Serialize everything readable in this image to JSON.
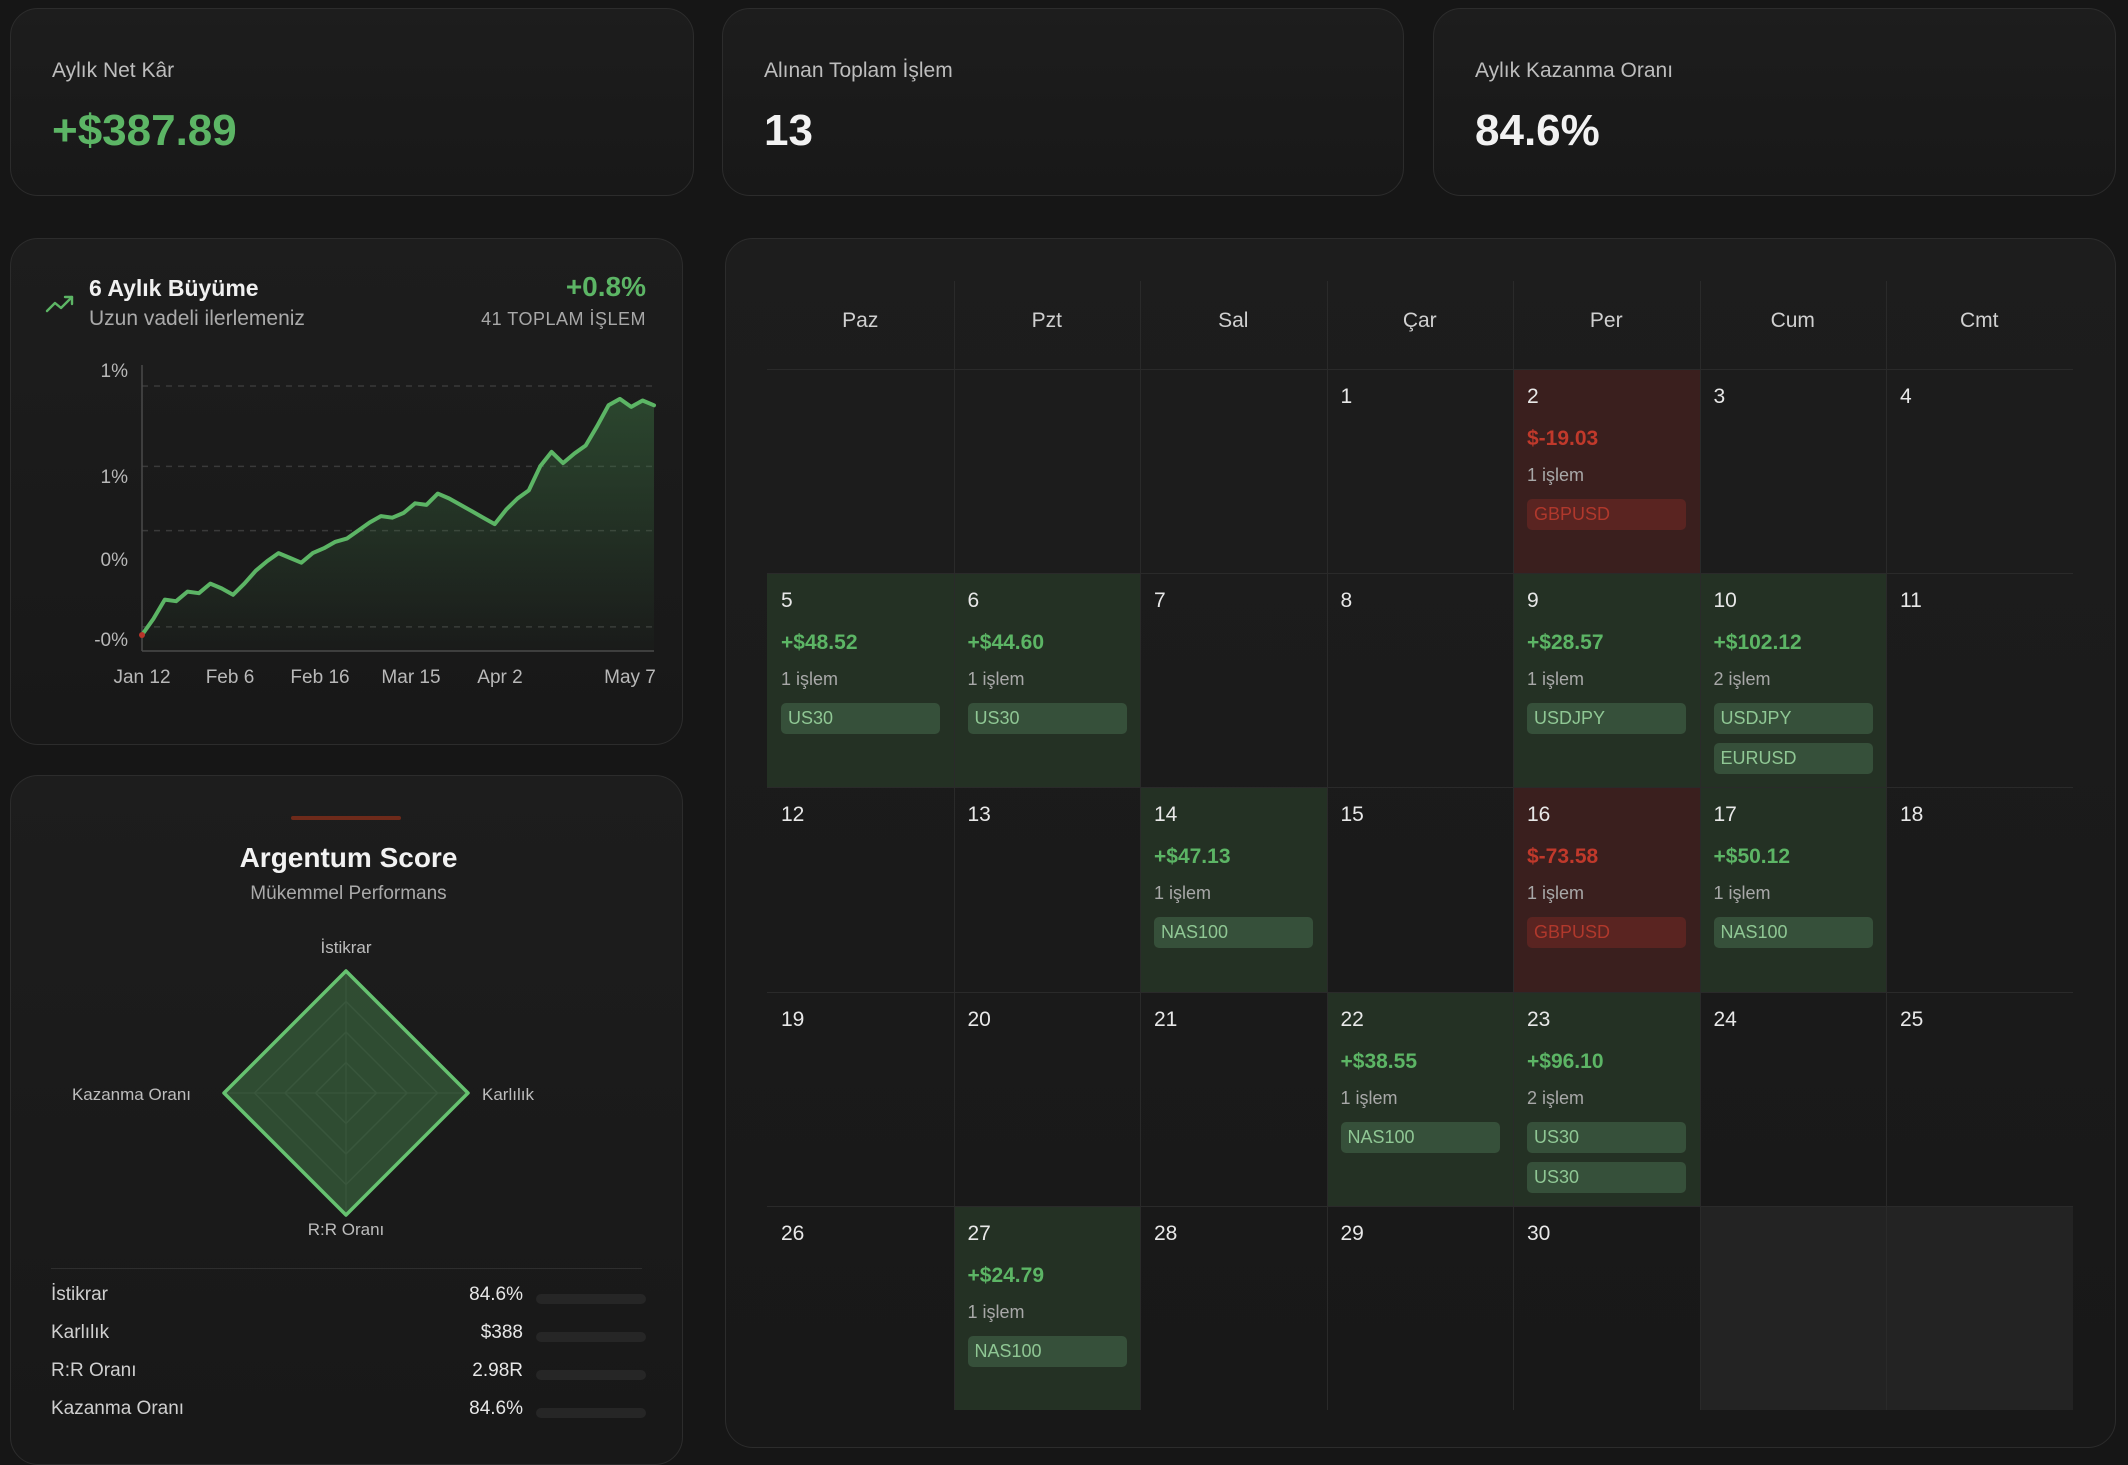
{
  "stats": [
    {
      "label": "Aylık Net Kâr",
      "value": "+$387.89",
      "positive": true
    },
    {
      "label": "Alınan Toplam İşlem",
      "value": "13",
      "positive": false
    },
    {
      "label": "Aylık Kazanma Oranı",
      "value": "84.6%",
      "positive": false
    }
  ],
  "growth": {
    "title": "6 Aylık Büyüme",
    "subtitle": "Uzun vadeli ilerlemeniz",
    "percent": "+0.8%",
    "count_label": "41 TOPLAM İŞLEM",
    "icon": "trending-up-icon",
    "y_ticks": [
      "1%",
      "1%",
      "0%",
      "-0%"
    ],
    "x_ticks": [
      "Jan 12",
      "Feb 6",
      "Feb 16",
      "Mar 15",
      "Apr 2",
      "May 7"
    ],
    "line_color": "#5cb565"
  },
  "chart_data": {
    "type": "area",
    "title": "6 Aylık Büyüme",
    "x_tick_labels": [
      "Jan 12",
      "Feb 6",
      "Feb 16",
      "Mar 15",
      "Apr 2",
      "May 7"
    ],
    "y_tick_labels": [
      "1%",
      "1%",
      "0%",
      "-0%"
    ],
    "ylim": [
      -0.2,
      1.55
    ],
    "grid": true,
    "values": [
      -0.1,
      0.0,
      0.12,
      0.11,
      0.17,
      0.16,
      0.22,
      0.19,
      0.15,
      0.22,
      0.3,
      0.36,
      0.41,
      0.38,
      0.35,
      0.41,
      0.44,
      0.48,
      0.5,
      0.55,
      0.6,
      0.64,
      0.63,
      0.66,
      0.72,
      0.71,
      0.78,
      0.75,
      0.71,
      0.67,
      0.63,
      0.59,
      0.68,
      0.75,
      0.8,
      0.95,
      1.04,
      0.97,
      1.03,
      1.08,
      1.2,
      1.33,
      1.37,
      1.32,
      1.36,
      1.33
    ]
  },
  "score": {
    "title": "Argentum Score",
    "subtitle": "Mükemmel Performans",
    "axes": [
      {
        "label": "İstikrar",
        "value": 0.846
      },
      {
        "label": "Karlılık",
        "value": 0.85
      },
      {
        "label": "R:R Oranı",
        "value": 0.85
      },
      {
        "label": "Kazanma Oranı",
        "value": 0.846
      }
    ],
    "metrics": [
      {
        "label": "İstikrar",
        "value": "84.6%"
      },
      {
        "label": "Karlılık",
        "value": "$388"
      },
      {
        "label": "R:R Oranı",
        "value": "2.98R"
      },
      {
        "label": "Kazanma Oranı",
        "value": "84.6%"
      }
    ]
  },
  "calendar": {
    "days": [
      "Paz",
      "Pzt",
      "Sal",
      "Çar",
      "Per",
      "Cum",
      "Cmt"
    ],
    "weeks": [
      [
        null,
        null,
        null,
        {
          "day": "1"
        },
        {
          "day": "2",
          "pnl": "$-19.03",
          "trades": "1 işlem",
          "tags": [
            "GBPUSD"
          ],
          "type": "loss"
        },
        {
          "day": "3"
        },
        {
          "day": "4"
        }
      ],
      [
        {
          "day": "5",
          "pnl": "+$48.52",
          "trades": "1 işlem",
          "tags": [
            "US30"
          ],
          "type": "profit"
        },
        {
          "day": "6",
          "pnl": "+$44.60",
          "trades": "1 işlem",
          "tags": [
            "US30"
          ],
          "type": "profit"
        },
        {
          "day": "7"
        },
        {
          "day": "8"
        },
        {
          "day": "9",
          "pnl": "+$28.57",
          "trades": "1 işlem",
          "tags": [
            "USDJPY"
          ],
          "type": "profit"
        },
        {
          "day": "10",
          "pnl": "+$102.12",
          "trades": "2 işlem",
          "tags": [
            "USDJPY",
            "EURUSD"
          ],
          "type": "profit"
        },
        {
          "day": "11"
        }
      ],
      [
        {
          "day": "12"
        },
        {
          "day": "13"
        },
        {
          "day": "14",
          "pnl": "+$47.13",
          "trades": "1 işlem",
          "tags": [
            "NAS100"
          ],
          "type": "profit"
        },
        {
          "day": "15"
        },
        {
          "day": "16",
          "pnl": "$-73.58",
          "trades": "1 işlem",
          "tags": [
            "GBPUSD"
          ],
          "type": "loss"
        },
        {
          "day": "17",
          "pnl": "+$50.12",
          "trades": "1 işlem",
          "tags": [
            "NAS100"
          ],
          "type": "profit"
        },
        {
          "day": "18"
        }
      ],
      [
        {
          "day": "19"
        },
        {
          "day": "20"
        },
        {
          "day": "21"
        },
        {
          "day": "22",
          "pnl": "+$38.55",
          "trades": "1 işlem",
          "tags": [
            "NAS100"
          ],
          "type": "profit"
        },
        {
          "day": "23",
          "pnl": "+$96.10",
          "trades": "2 işlem",
          "tags": [
            "US30",
            "US30"
          ],
          "type": "profit"
        },
        {
          "day": "24"
        },
        {
          "day": "25"
        }
      ],
      [
        {
          "day": "26"
        },
        {
          "day": "27",
          "pnl": "+$24.79",
          "trades": "1 işlem",
          "tags": [
            "NAS100"
          ],
          "type": "profit"
        },
        {
          "day": "28"
        },
        {
          "day": "29"
        },
        {
          "day": "30"
        },
        {
          "type": "empty"
        },
        {
          "type": "empty"
        }
      ]
    ]
  }
}
